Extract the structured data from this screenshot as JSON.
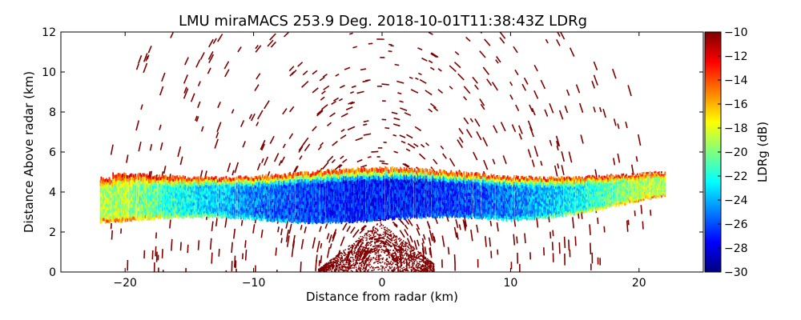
{
  "chart_data": {
    "type": "heatmap",
    "title": "LMU miraMACS 253.9 Deg. 2018-10-01T11:38:43Z  LDRg",
    "xlabel": "Distance from radar (km)",
    "ylabel": "Distance Above radar  (km)",
    "xlim": [
      -25,
      25
    ],
    "ylim": [
      0,
      12
    ],
    "xticks": [
      -20,
      -10,
      0,
      10,
      20
    ],
    "xtick_labels": [
      "−20",
      "−10",
      "0",
      "10",
      "20"
    ],
    "yticks": [
      0,
      2,
      4,
      6,
      8,
      10,
      12
    ],
    "ytick_labels": [
      "0",
      "2",
      "4",
      "6",
      "8",
      "10",
      "12"
    ],
    "colorbar": {
      "label": "LDRg (dB)",
      "range": [
        -30,
        -10
      ],
      "ticks": [
        -30,
        -28,
        -26,
        -24,
        -22,
        -20,
        -18,
        -16,
        -14,
        -12,
        -10
      ],
      "tick_labels": [
        "−30",
        "−28",
        "−26",
        "−24",
        "−22",
        "−20",
        "−18",
        "−16",
        "−14",
        "−12",
        "−10"
      ],
      "colormap": "jet"
    },
    "scan": {
      "azimuth_deg": 253.9,
      "x_extent_km": [
        -22,
        22
      ],
      "noise_max_range_km": 22,
      "noise_ldr_db": -10
    },
    "cloud_layer": {
      "base_km": 2.6,
      "top_km": 5.0,
      "core_ldr_db": -27,
      "edge_ldr_db": -19,
      "top_ldr_db": -12
    },
    "near_ground_echo": {
      "x_range_km": [
        -5,
        4
      ],
      "max_height_km": 2.5,
      "ldr_db": -10
    },
    "colors": {
      "background": "#ffffff",
      "axis": "#000000",
      "noise": "#800000"
    }
  }
}
